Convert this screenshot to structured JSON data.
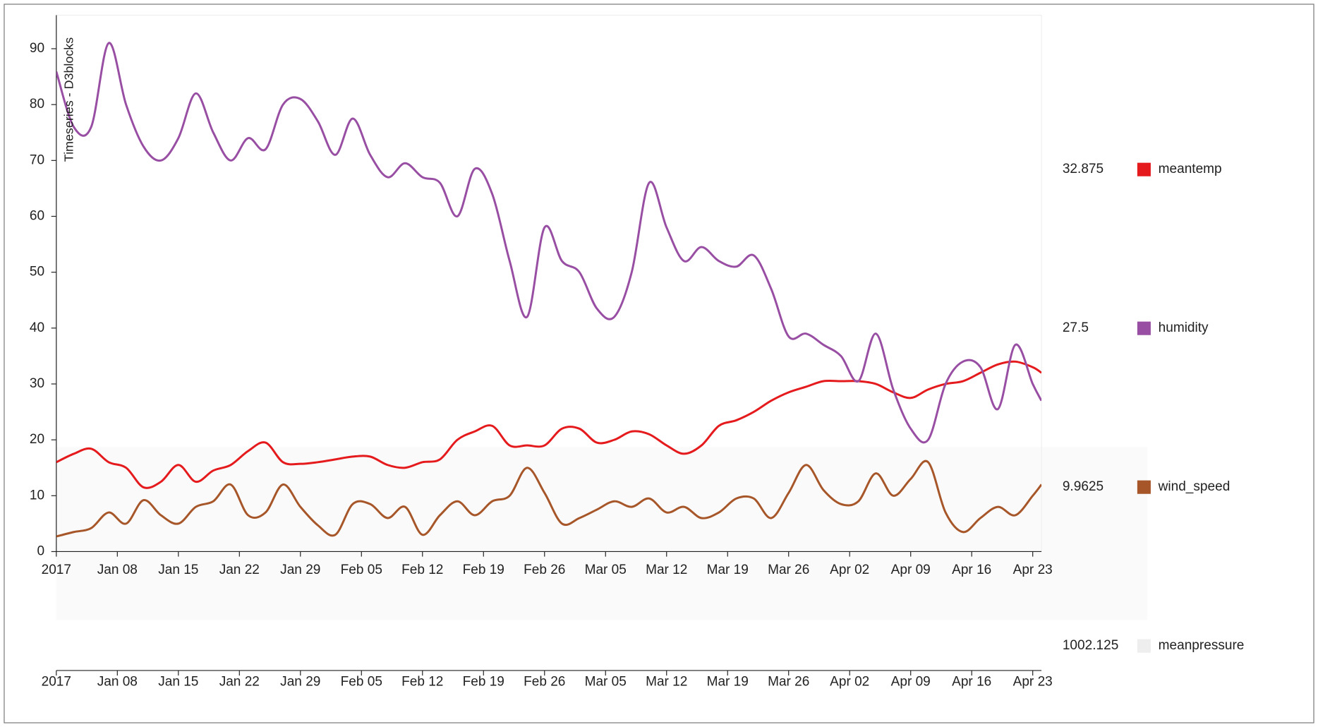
{
  "chart_data": {
    "type": "line",
    "title": "Timeseries - D3blocks",
    "x": [
      "2017-01-01",
      "2017-01-03",
      "2017-01-05",
      "2017-01-07",
      "2017-01-09",
      "2017-01-11",
      "2017-01-13",
      "2017-01-15",
      "2017-01-17",
      "2017-01-19",
      "2017-01-21",
      "2017-01-23",
      "2017-01-25",
      "2017-01-27",
      "2017-01-29",
      "2017-01-31",
      "2017-02-02",
      "2017-02-04",
      "2017-02-06",
      "2017-02-08",
      "2017-02-10",
      "2017-02-12",
      "2017-02-14",
      "2017-02-16",
      "2017-02-18",
      "2017-02-20",
      "2017-02-22",
      "2017-02-24",
      "2017-02-26",
      "2017-02-28",
      "2017-03-02",
      "2017-03-04",
      "2017-03-06",
      "2017-03-08",
      "2017-03-10",
      "2017-03-12",
      "2017-03-14",
      "2017-03-16",
      "2017-03-18",
      "2017-03-20",
      "2017-03-22",
      "2017-03-24",
      "2017-03-26",
      "2017-03-28",
      "2017-03-30",
      "2017-04-01",
      "2017-04-03",
      "2017-04-05",
      "2017-04-07",
      "2017-04-09",
      "2017-04-11",
      "2017-04-13",
      "2017-04-15",
      "2017-04-17",
      "2017-04-19",
      "2017-04-21",
      "2017-04-23",
      "2017-04-24"
    ],
    "series": [
      {
        "name": "meantemp",
        "color": "#e41a1c",
        "current": 32.875,
        "values": [
          16,
          17.5,
          18.4,
          16,
          15,
          11.5,
          12.5,
          15.5,
          12.5,
          14.5,
          15.5,
          18,
          19.5,
          16,
          15.7,
          16,
          16.5,
          17,
          17,
          15.5,
          15,
          16,
          16.5,
          20,
          21.5,
          22.5,
          19,
          19,
          19,
          22,
          22,
          19.5,
          20,
          21.5,
          21,
          19,
          17.5,
          19,
          22.5,
          23.5,
          25,
          27,
          28.5,
          29.5,
          30.5,
          30.5,
          30.5,
          30,
          28.5,
          27.5,
          29,
          30,
          30.5,
          32,
          33.5,
          34,
          33,
          32
        ]
      },
      {
        "name": "humidity",
        "color": "#984ea3",
        "current": 27.5,
        "values": [
          85.9,
          76,
          76,
          91,
          80,
          72.5,
          70,
          74,
          82,
          75,
          70,
          74,
          72,
          80,
          81,
          77,
          71,
          77.5,
          71,
          67,
          69.5,
          67,
          66,
          60,
          68.5,
          64,
          52,
          42,
          58,
          52,
          50,
          43.5,
          42,
          50,
          66,
          58,
          52,
          54.5,
          52,
          51,
          53,
          47,
          38.5,
          39,
          37,
          35,
          30.5,
          39,
          29,
          22,
          20,
          30,
          34,
          33,
          25.5,
          37,
          30,
          27
        ]
      },
      {
        "name": "wind_speed",
        "color": "#a65628",
        "current": 9.9625,
        "values": [
          2.7,
          3.5,
          4.2,
          7,
          5,
          9.2,
          6.5,
          5,
          8,
          9,
          12,
          6.5,
          7,
          12,
          8,
          4.7,
          3,
          8.5,
          8.5,
          6,
          8,
          3,
          6.5,
          9,
          6.5,
          9,
          10,
          15,
          10.5,
          5,
          6,
          7.5,
          9,
          8,
          9.5,
          7,
          8,
          6,
          7,
          9.5,
          9.5,
          6,
          10.5,
          15.5,
          11,
          8.5,
          9,
          14,
          10,
          13,
          16,
          7,
          3.5,
          6,
          8,
          6.5,
          10,
          12
        ]
      },
      {
        "name": "meanpressure",
        "color": "#eeeeee",
        "current": 1002.125
      }
    ],
    "xlim": [
      "2017-01-01",
      "2017-04-24"
    ],
    "xticks": [
      {
        "value": "2017-01-01",
        "label": "2017"
      },
      {
        "value": "2017-01-08",
        "label": "Jan 08"
      },
      {
        "value": "2017-01-15",
        "label": "Jan 15"
      },
      {
        "value": "2017-01-22",
        "label": "Jan 22"
      },
      {
        "value": "2017-01-29",
        "label": "Jan 29"
      },
      {
        "value": "2017-02-05",
        "label": "Feb 05"
      },
      {
        "value": "2017-02-12",
        "label": "Feb 12"
      },
      {
        "value": "2017-02-19",
        "label": "Feb 19"
      },
      {
        "value": "2017-02-26",
        "label": "Feb 26"
      },
      {
        "value": "2017-03-05",
        "label": "Mar 05"
      },
      {
        "value": "2017-03-12",
        "label": "Mar 12"
      },
      {
        "value": "2017-03-19",
        "label": "Mar 19"
      },
      {
        "value": "2017-03-26",
        "label": "Mar 26"
      },
      {
        "value": "2017-04-02",
        "label": "Apr 02"
      },
      {
        "value": "2017-04-09",
        "label": "Apr 09"
      },
      {
        "value": "2017-04-16",
        "label": "Apr 16"
      },
      {
        "value": "2017-04-23",
        "label": "Apr 23"
      }
    ],
    "ylim": [
      0,
      96
    ],
    "yticks": [
      0,
      10,
      20,
      30,
      40,
      50,
      60,
      70,
      80,
      90
    ]
  }
}
